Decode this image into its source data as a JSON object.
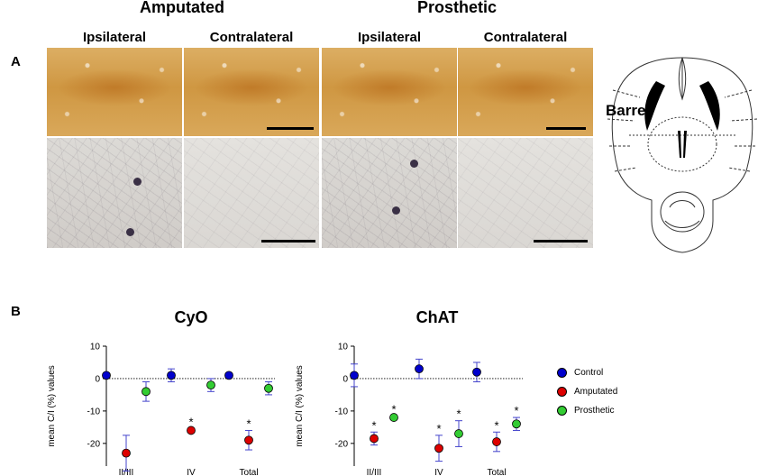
{
  "panel_a": {
    "letter": "A",
    "groups": [
      {
        "title": "Amputated",
        "columns": [
          "Ipsilateral",
          "Contralateral"
        ]
      },
      {
        "title": "Prosthetic",
        "columns": [
          "Ipsilateral",
          "Contralateral"
        ]
      }
    ],
    "schematic": {
      "label": "Barrel"
    }
  },
  "panel_b": {
    "letter": "B",
    "y_axis_label": "mean C/I (%) values",
    "legend": [
      {
        "label": "Control",
        "color": "#0000cc"
      },
      {
        "label": "Amputated",
        "color": "#dd0000"
      },
      {
        "label": "Prosthetic",
        "color": "#33cc33"
      }
    ],
    "significance_marker": "*"
  },
  "chart_data": [
    {
      "type": "scatter",
      "title": "CyO",
      "ylabel": "mean C/I (%) values",
      "categories": [
        "II/III",
        "IV",
        "Total"
      ],
      "ylim": [
        -27,
        10
      ],
      "yticks": [
        10,
        0,
        -10,
        -20
      ],
      "reference_line": 0,
      "series": [
        {
          "name": "Control",
          "color": "#0000cc",
          "values": [
            1,
            1,
            1
          ],
          "errors": [
            0.5,
            2,
            0.5
          ],
          "significant": [
            false,
            false,
            false
          ]
        },
        {
          "name": "Amputated",
          "color": "#dd0000",
          "values": [
            -23,
            -16,
            -19
          ],
          "errors": [
            5.5,
            0.5,
            3
          ],
          "significant": [
            false,
            true,
            true
          ]
        },
        {
          "name": "Prosthetic",
          "color": "#33cc33",
          "values": [
            -4,
            -2,
            -3
          ],
          "errors": [
            3,
            2,
            2
          ],
          "significant": [
            false,
            false,
            false
          ]
        }
      ]
    },
    {
      "type": "scatter",
      "title": "ChAT",
      "ylabel": "mean C/I (%) values",
      "categories": [
        "II/III",
        "IV",
        "Total"
      ],
      "ylim": [
        -27,
        10
      ],
      "yticks": [
        10,
        0,
        -10,
        -20
      ],
      "reference_line": 0,
      "series": [
        {
          "name": "Control",
          "color": "#0000cc",
          "values": [
            1,
            3,
            2
          ],
          "errors": [
            3.5,
            3,
            3
          ],
          "significant": [
            false,
            false,
            false
          ]
        },
        {
          "name": "Amputated",
          "color": "#dd0000",
          "values": [
            -18.5,
            -21.5,
            -19.5
          ],
          "errors": [
            2,
            4,
            3
          ],
          "significant": [
            true,
            true,
            true
          ]
        },
        {
          "name": "Prosthetic",
          "color": "#33cc33",
          "values": [
            -12,
            -17,
            -14
          ],
          "errors": [
            0.5,
            4,
            2
          ],
          "significant": [
            true,
            true,
            true
          ]
        }
      ]
    }
  ]
}
